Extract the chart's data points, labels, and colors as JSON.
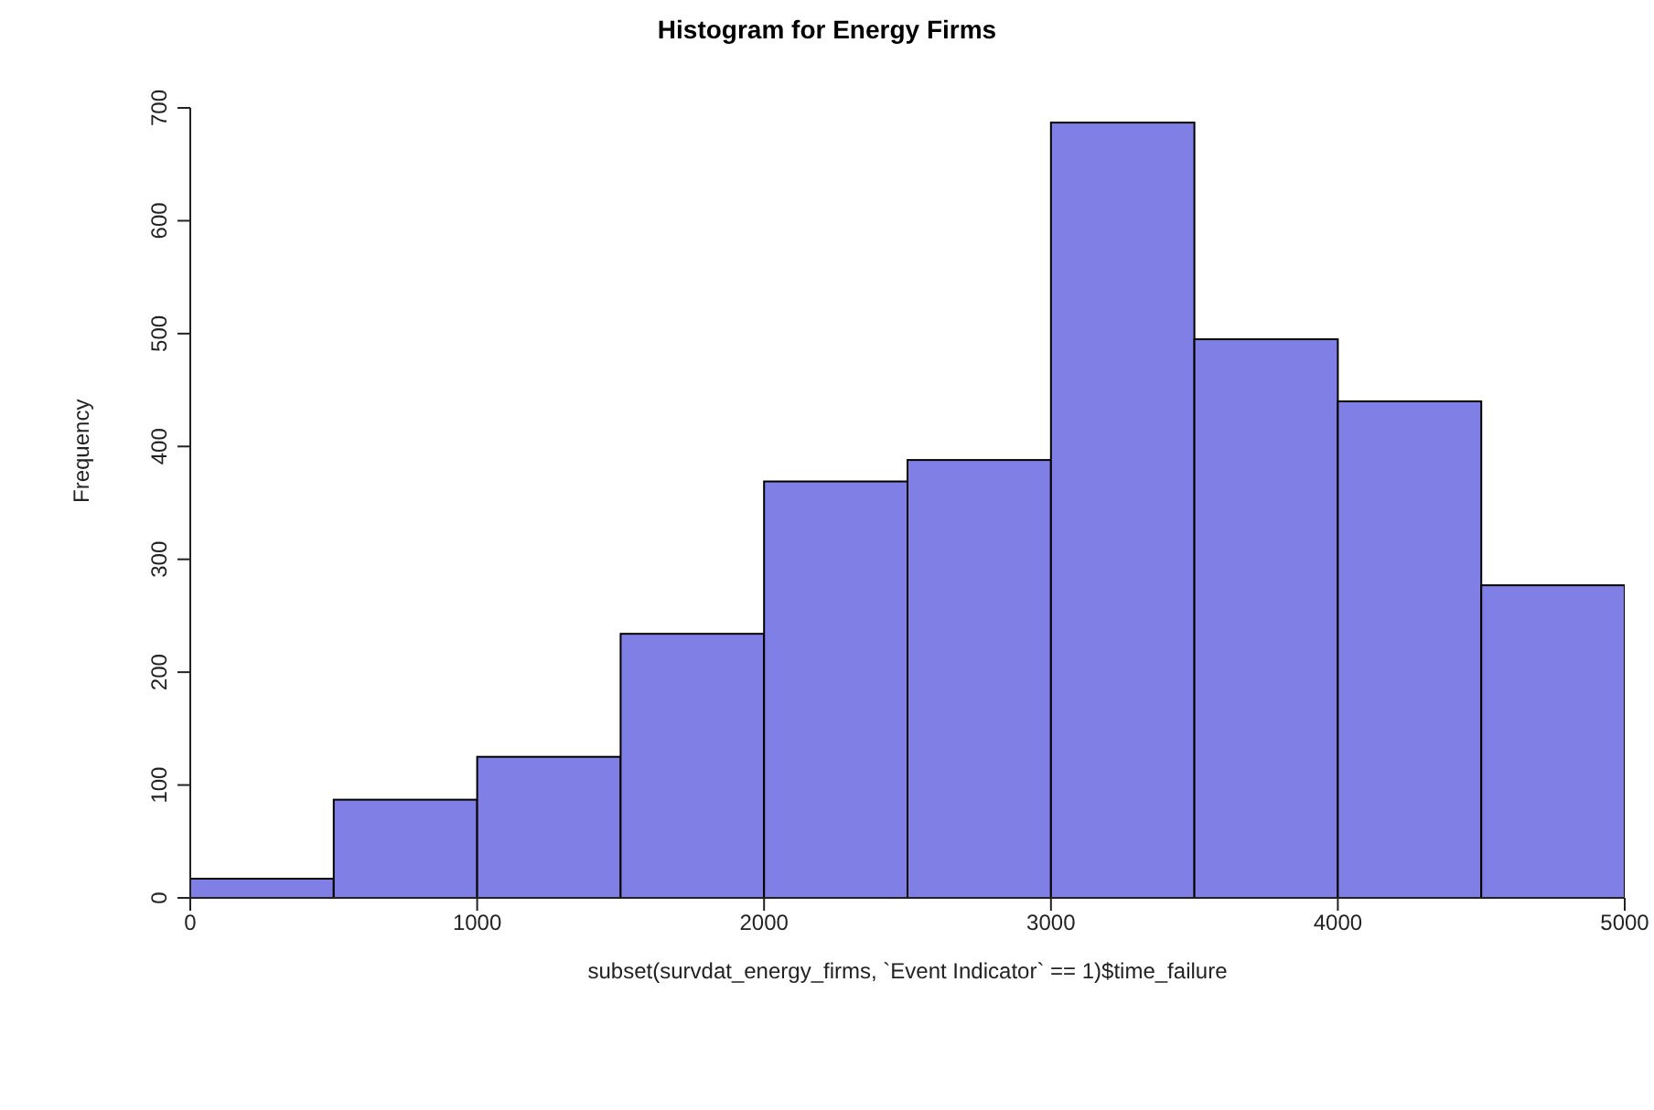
{
  "chart_data": {
    "type": "histogram",
    "title": "Histogram for Energy Firms",
    "xlabel": "subset(survdat_energy_firms, `Event Indicator` == 1)$time_failure",
    "ylabel": "Frequency",
    "bins": [
      0,
      500,
      1000,
      1500,
      2000,
      2500,
      3000,
      3500,
      4000,
      4500,
      5000
    ],
    "values": [
      17,
      87,
      125,
      234,
      369,
      388,
      687,
      495,
      440,
      277
    ],
    "color": "#7f7fe6",
    "xlim": [
      0,
      5000
    ],
    "xticks": [
      0,
      1000,
      2000,
      3000,
      4000,
      5000
    ],
    "ylim": [
      0,
      700
    ],
    "yticks": [
      0,
      100,
      200,
      300,
      400,
      500,
      600,
      700
    ],
    "grid": false,
    "legend": false
  }
}
